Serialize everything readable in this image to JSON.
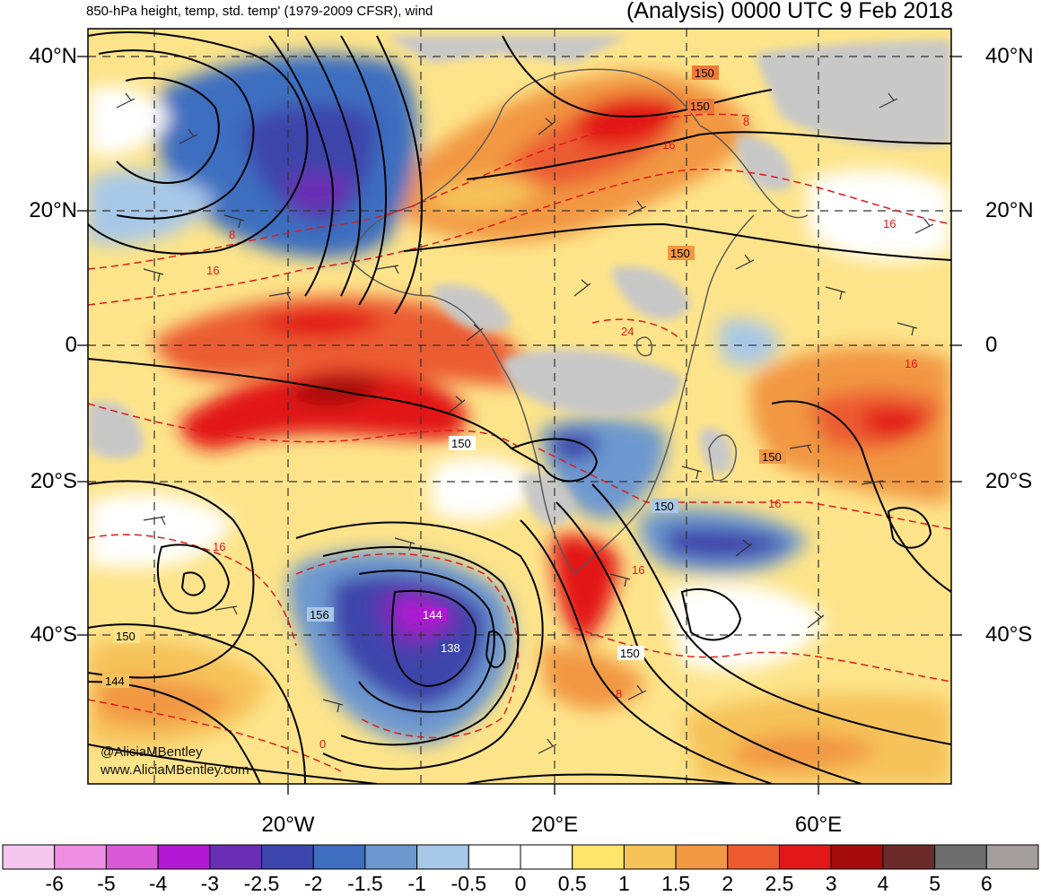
{
  "header": {
    "title_left": "850-hPa height, temp, std. temp' (1979-2009 CFSR), wind",
    "title_right": "(Analysis) 0000 UTC 9 Feb 2018"
  },
  "map": {
    "lat_labels": [
      "40°N",
      "20°N",
      "0",
      "20°S",
      "40°S"
    ],
    "lon_labels": [
      "20°W",
      "20°E",
      "60°E"
    ],
    "height_contour_labels": [
      "150",
      "150",
      "150",
      "150",
      "150",
      "150",
      "150",
      "156",
      "150",
      "144",
      "144",
      "138"
    ],
    "temperature_contour_labels": [
      "8",
      "16",
      "16",
      "16",
      "16",
      "16",
      "16",
      "8",
      "0",
      "24",
      "8",
      "16"
    ]
  },
  "colorbar": {
    "labels": [
      "-6",
      "-5",
      "-4",
      "-3",
      "-2.5",
      "-2",
      "-1.5",
      "-1",
      "-0.5",
      "0",
      "0.5",
      "1",
      "1.5",
      "2",
      "2.5",
      "3",
      "4",
      "5",
      "6"
    ],
    "colors": [
      "#f5c6ee",
      "#ef8fe4",
      "#d95ad6",
      "#b218d2",
      "#6a2fb4",
      "#3c45ab",
      "#3e6ebf",
      "#6d98cf",
      "#a8c8e8",
      "#ffffff",
      "#ffffff",
      "#fde66a",
      "#f6c25a",
      "#f29742",
      "#ec5b30",
      "#e21818",
      "#a60b0b",
      "#6b2a2a",
      "#6e6e6e",
      "#a49e9e"
    ]
  },
  "credits": {
    "twitter": "@AliciaMBentley",
    "website": "www.AliciaMBentley.com"
  }
}
